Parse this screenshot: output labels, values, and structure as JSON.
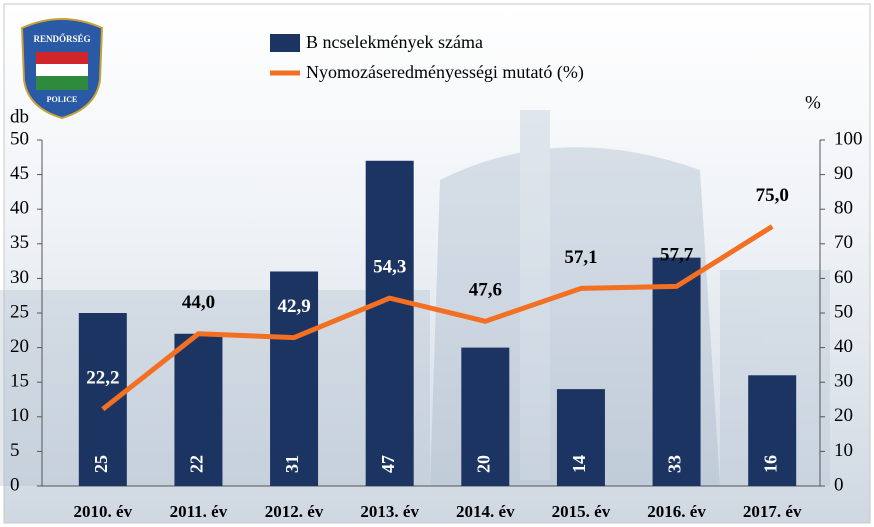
{
  "logo": {
    "top": "RENDŐRSÉG",
    "bottom": "POLICE"
  },
  "chart_data": {
    "type": "bar-line",
    "categories": [
      "2010. év",
      "2011. év",
      "2012. év",
      "2013. év",
      "2014. év",
      "2015. év",
      "2016. év",
      "2017. év"
    ],
    "series": [
      {
        "name": "B  ncselekmények száma",
        "type": "bar",
        "color": "#1c3461",
        "values": [
          25,
          22,
          31,
          47,
          20,
          14,
          33,
          16
        ]
      },
      {
        "name": "Nyomozáseredményességi mutató (%)",
        "type": "line",
        "axis": "y2",
        "color": "#f36f21",
        "values": [
          22.2,
          44.0,
          42.9,
          54.3,
          47.6,
          57.1,
          57.7,
          75.0
        ],
        "value_labels": [
          "22,2",
          "44,0",
          "42,9",
          "54,3",
          "47,6",
          "57,1",
          "57,7",
          "75,0"
        ]
      }
    ],
    "ylabel": "db",
    "y2label": "%",
    "ylim": [
      0,
      50
    ],
    "yticks": [
      0,
      5,
      10,
      15,
      20,
      25,
      30,
      35,
      40,
      45,
      50
    ],
    "y2lim": [
      0,
      100
    ],
    "y2ticks": [
      0,
      10,
      20,
      30,
      40,
      50,
      60,
      70,
      80,
      90,
      100
    ],
    "grid": false
  }
}
